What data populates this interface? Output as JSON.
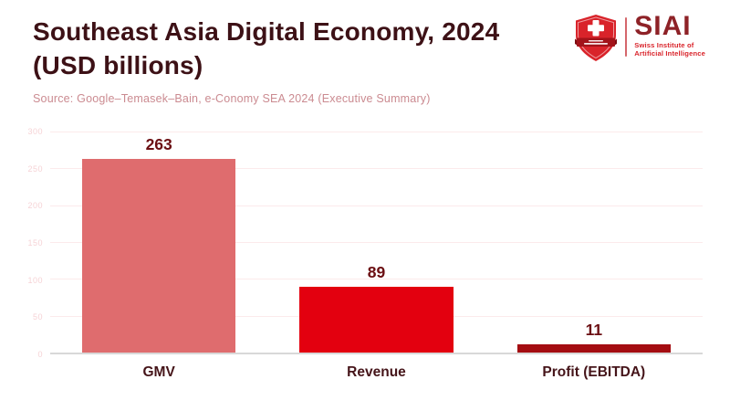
{
  "header": {
    "title_line1": "Southeast Asia Digital Economy, 2024",
    "title_line2": "(USD billions)",
    "source": "Source: Google–Temasek–Bain, e-Conomy SEA 2024 (Executive Summary)"
  },
  "logo": {
    "acronym": "SIAI",
    "subtitle_line1": "Swiss Institute of",
    "subtitle_line2": "Artificial Intelligence",
    "shield_icon": "swiss-shield-cross-icon"
  },
  "colors": {
    "title": "#3d1116",
    "source_text": "#cb8b91",
    "axis_label": "#f6d3d6",
    "gridline": "#fceaeb",
    "axis_line": "#d8d8d8",
    "value_label": "#6b0e12",
    "category_label": "#451419",
    "logo_red": "#d9232a",
    "logo_dark_red": "#8e2227",
    "logo_ribbon": "#a3131a",
    "logo_divider": "#d4666b"
  },
  "chart_data": {
    "type": "bar",
    "categories": [
      "GMV",
      "Revenue",
      "Profit (EBITDA)"
    ],
    "values": [
      263,
      89,
      11
    ],
    "bar_colors": [
      "#df6c6e",
      "#e3000f",
      "#a40d11"
    ],
    "title": "Southeast Asia Digital Economy, 2024 (USD billions)",
    "xlabel": "",
    "ylabel": "",
    "ylim": [
      0,
      300
    ],
    "yticks": [
      0,
      50,
      100,
      150,
      200,
      250,
      300
    ],
    "grid": true,
    "legend": false,
    "value_labels_shown": true
  }
}
